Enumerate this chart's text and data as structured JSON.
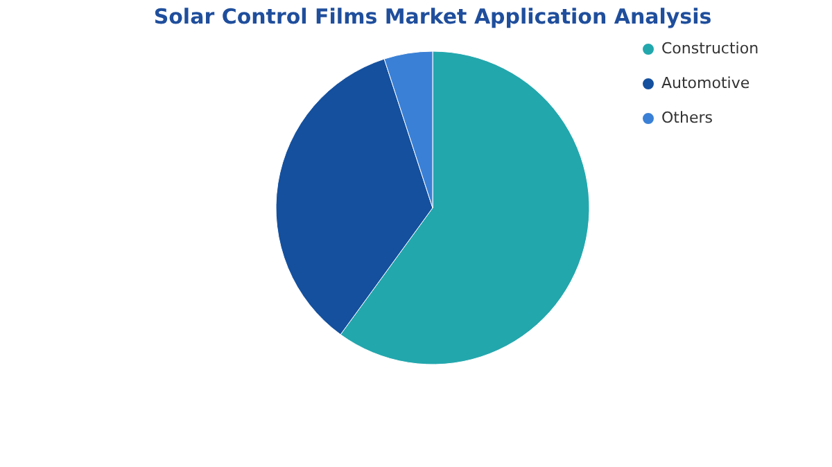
{
  "chart_data": {
    "type": "pie",
    "title": "Solar Control Films Market Application Analysis",
    "categories": [
      "Construction",
      "Automotive",
      "Others"
    ],
    "values": [
      60,
      35,
      5
    ],
    "colors": [
      "#22a7ad",
      "#15509e",
      "#3a80d6"
    ],
    "legend": "right"
  }
}
